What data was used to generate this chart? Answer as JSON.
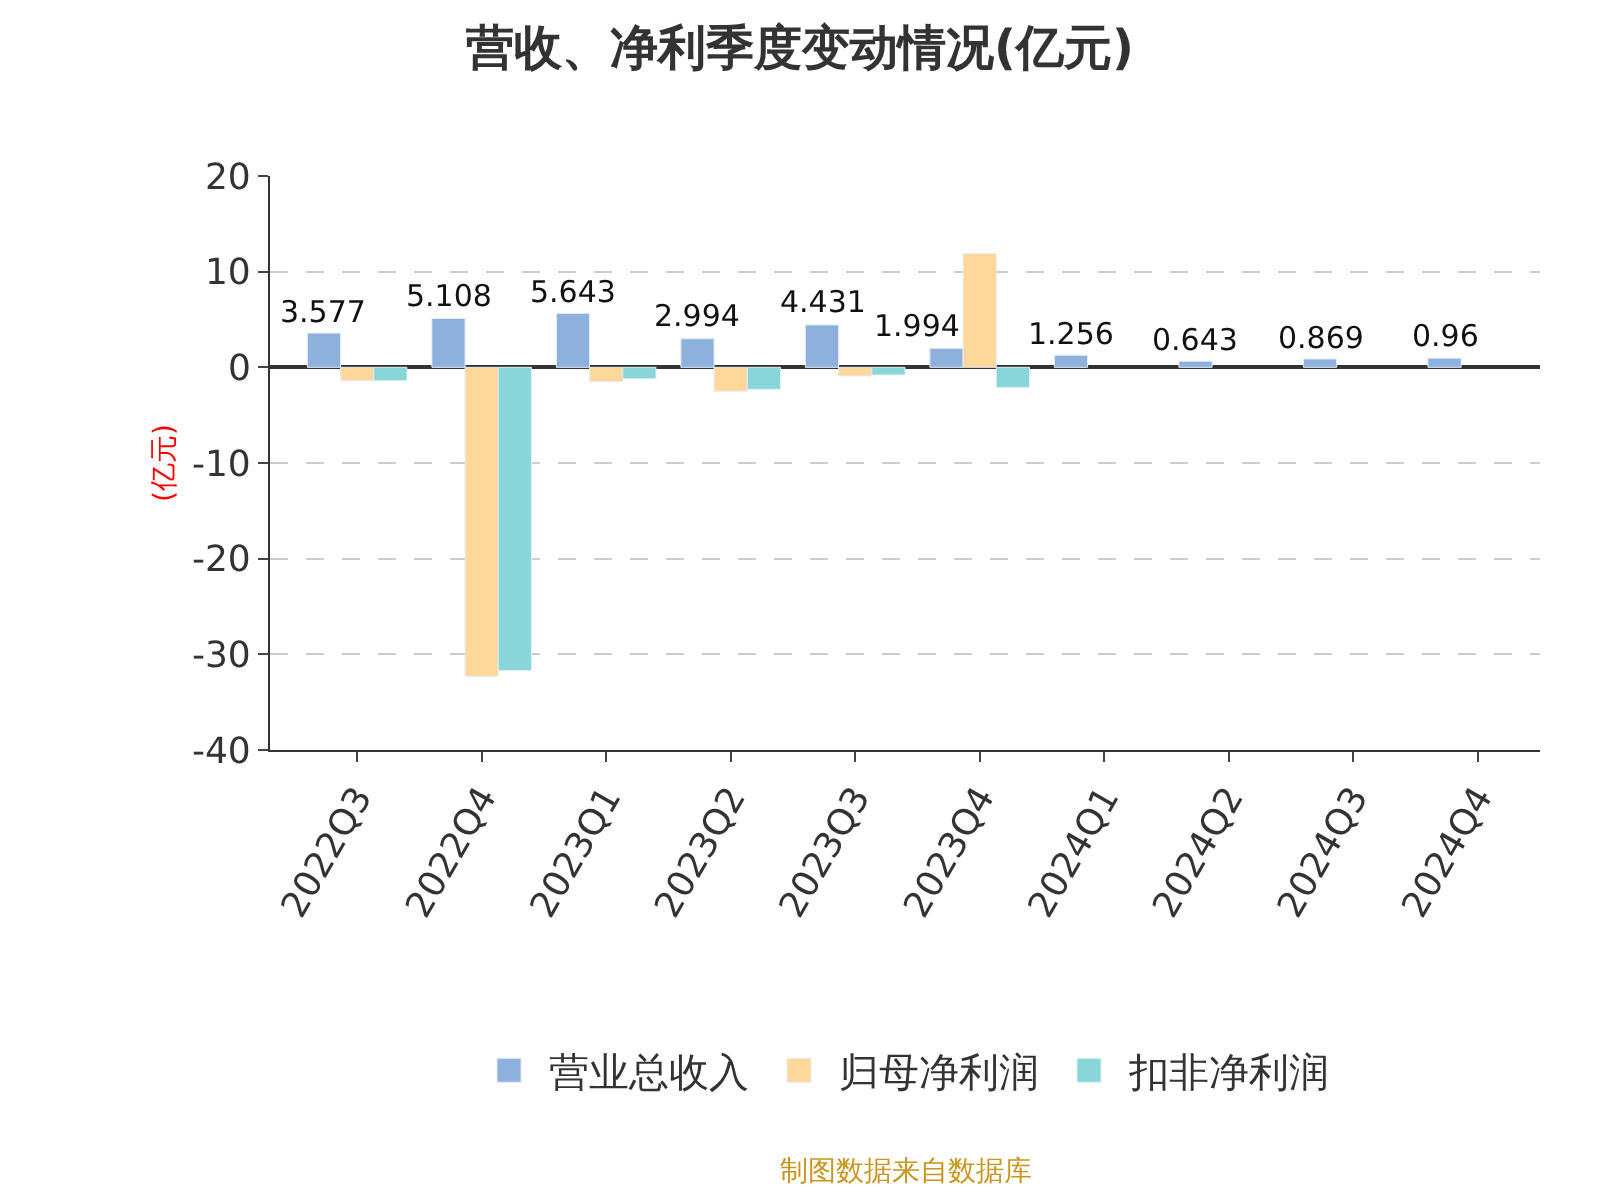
{
  "chart_data": {
    "type": "bar",
    "title": "营收、净利季度变动情况(亿元)",
    "ylabel": "(亿元)",
    "categories": [
      "2022Q3",
      "2022Q4",
      "2023Q1",
      "2023Q2",
      "2023Q3",
      "2023Q4",
      "2024Q1",
      "2024Q2",
      "2024Q3",
      "2024Q4"
    ],
    "series": [
      {
        "name": "营业总收入",
        "color": "#8eb0dc",
        "values": [
          3.577,
          5.108,
          5.643,
          2.994,
          4.431,
          1.994,
          1.256,
          0.643,
          0.869,
          0.96
        ],
        "value_labels": [
          "3.577",
          "5.108",
          "5.643",
          "2.994",
          "4.431",
          "1.994",
          "1.256",
          "0.643",
          "0.869",
          "0.96"
        ]
      },
      {
        "name": "归母净利润",
        "color": "#fdd89a",
        "values": [
          -1.4,
          -32.3,
          -1.5,
          -2.5,
          -0.9,
          11.9,
          null,
          null,
          null,
          null
        ]
      },
      {
        "name": "扣非净利润",
        "color": "#88d6da",
        "values": [
          -1.4,
          -31.7,
          -1.2,
          -2.3,
          -0.8,
          -2.1,
          null,
          null,
          null,
          null
        ]
      }
    ],
    "ylim": [
      -40,
      20
    ],
    "yticks": [
      -40,
      -30,
      -20,
      -10,
      0,
      10,
      20
    ],
    "grid": "y",
    "legend": "bottom",
    "annotations": [
      "制图数据来自数据库"
    ]
  }
}
